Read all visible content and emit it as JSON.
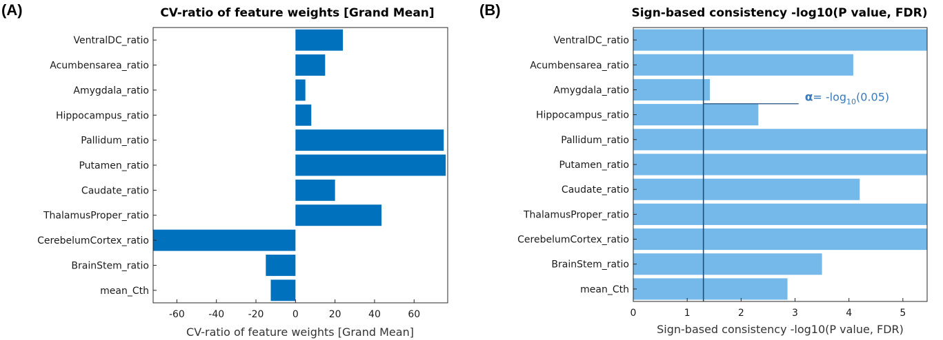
{
  "panel_a": {
    "panel_label": "(A)",
    "chart_data": {
      "type": "bar",
      "orientation": "horizontal",
      "title": "CV-ratio of feature weights [Grand Mean]",
      "xlabel": "CV-ratio of feature weights [Grand Mean]",
      "ylabel": "",
      "categories": [
        "VentralDC_ratio",
        "Acumbensarea_ratio",
        "Amygdala_ratio",
        "Hippocampus_ratio",
        "Pallidum_ratio",
        "Putamen_ratio",
        "Caudate_ratio",
        "ThalamusProper_ratio",
        "CerebelumCortex_ratio",
        "BrainStem_ratio",
        "mean_Cth"
      ],
      "values": [
        24,
        15,
        5,
        8,
        75,
        76,
        20,
        43.5,
        -72,
        -15,
        -12.5
      ],
      "xlim": [
        -72,
        77
      ],
      "xticks": [
        -60,
        -40,
        -20,
        0,
        20,
        40,
        60
      ],
      "xtick_labels": [
        "-60",
        "-40",
        "-20",
        "0",
        "20",
        "40",
        "60"
      ],
      "color": "#0072bd",
      "grid": false
    }
  },
  "panel_b": {
    "panel_label": "(B)",
    "chart_data": {
      "type": "bar",
      "orientation": "horizontal",
      "title": "Sign-based consistency -log10(P value, FDR)",
      "xlabel": "Sign-based consistency -log10(P value, FDR)",
      "ylabel": "",
      "categories": [
        "VentralDC_ratio",
        "Acumbensarea_ratio",
        "Amygdala_ratio",
        "Hippocampus_ratio",
        "Pallidum_ratio",
        "Putamen_ratio",
        "Caudate_ratio",
        "ThalamusProper_ratio",
        "CerebelumCortex_ratio",
        "BrainStem_ratio",
        "mean_Cth"
      ],
      "values": [
        5.5,
        4.08,
        1.42,
        2.32,
        5.5,
        5.5,
        4.2,
        5.5,
        5.5,
        3.5,
        2.86
      ],
      "xlim": [
        0,
        5.45
      ],
      "xticks": [
        0,
        1,
        2,
        3,
        4,
        5
      ],
      "xtick_labels": [
        "0",
        "1",
        "2",
        "3",
        "4",
        "5"
      ],
      "color": "#74b9ea",
      "grid": false,
      "threshold": {
        "value": 1.301,
        "label_alpha": "α",
        "label_eq": "= -log",
        "label_sub": "10",
        "label_arg": "(0.05)",
        "color": "#1f4e79"
      }
    }
  }
}
